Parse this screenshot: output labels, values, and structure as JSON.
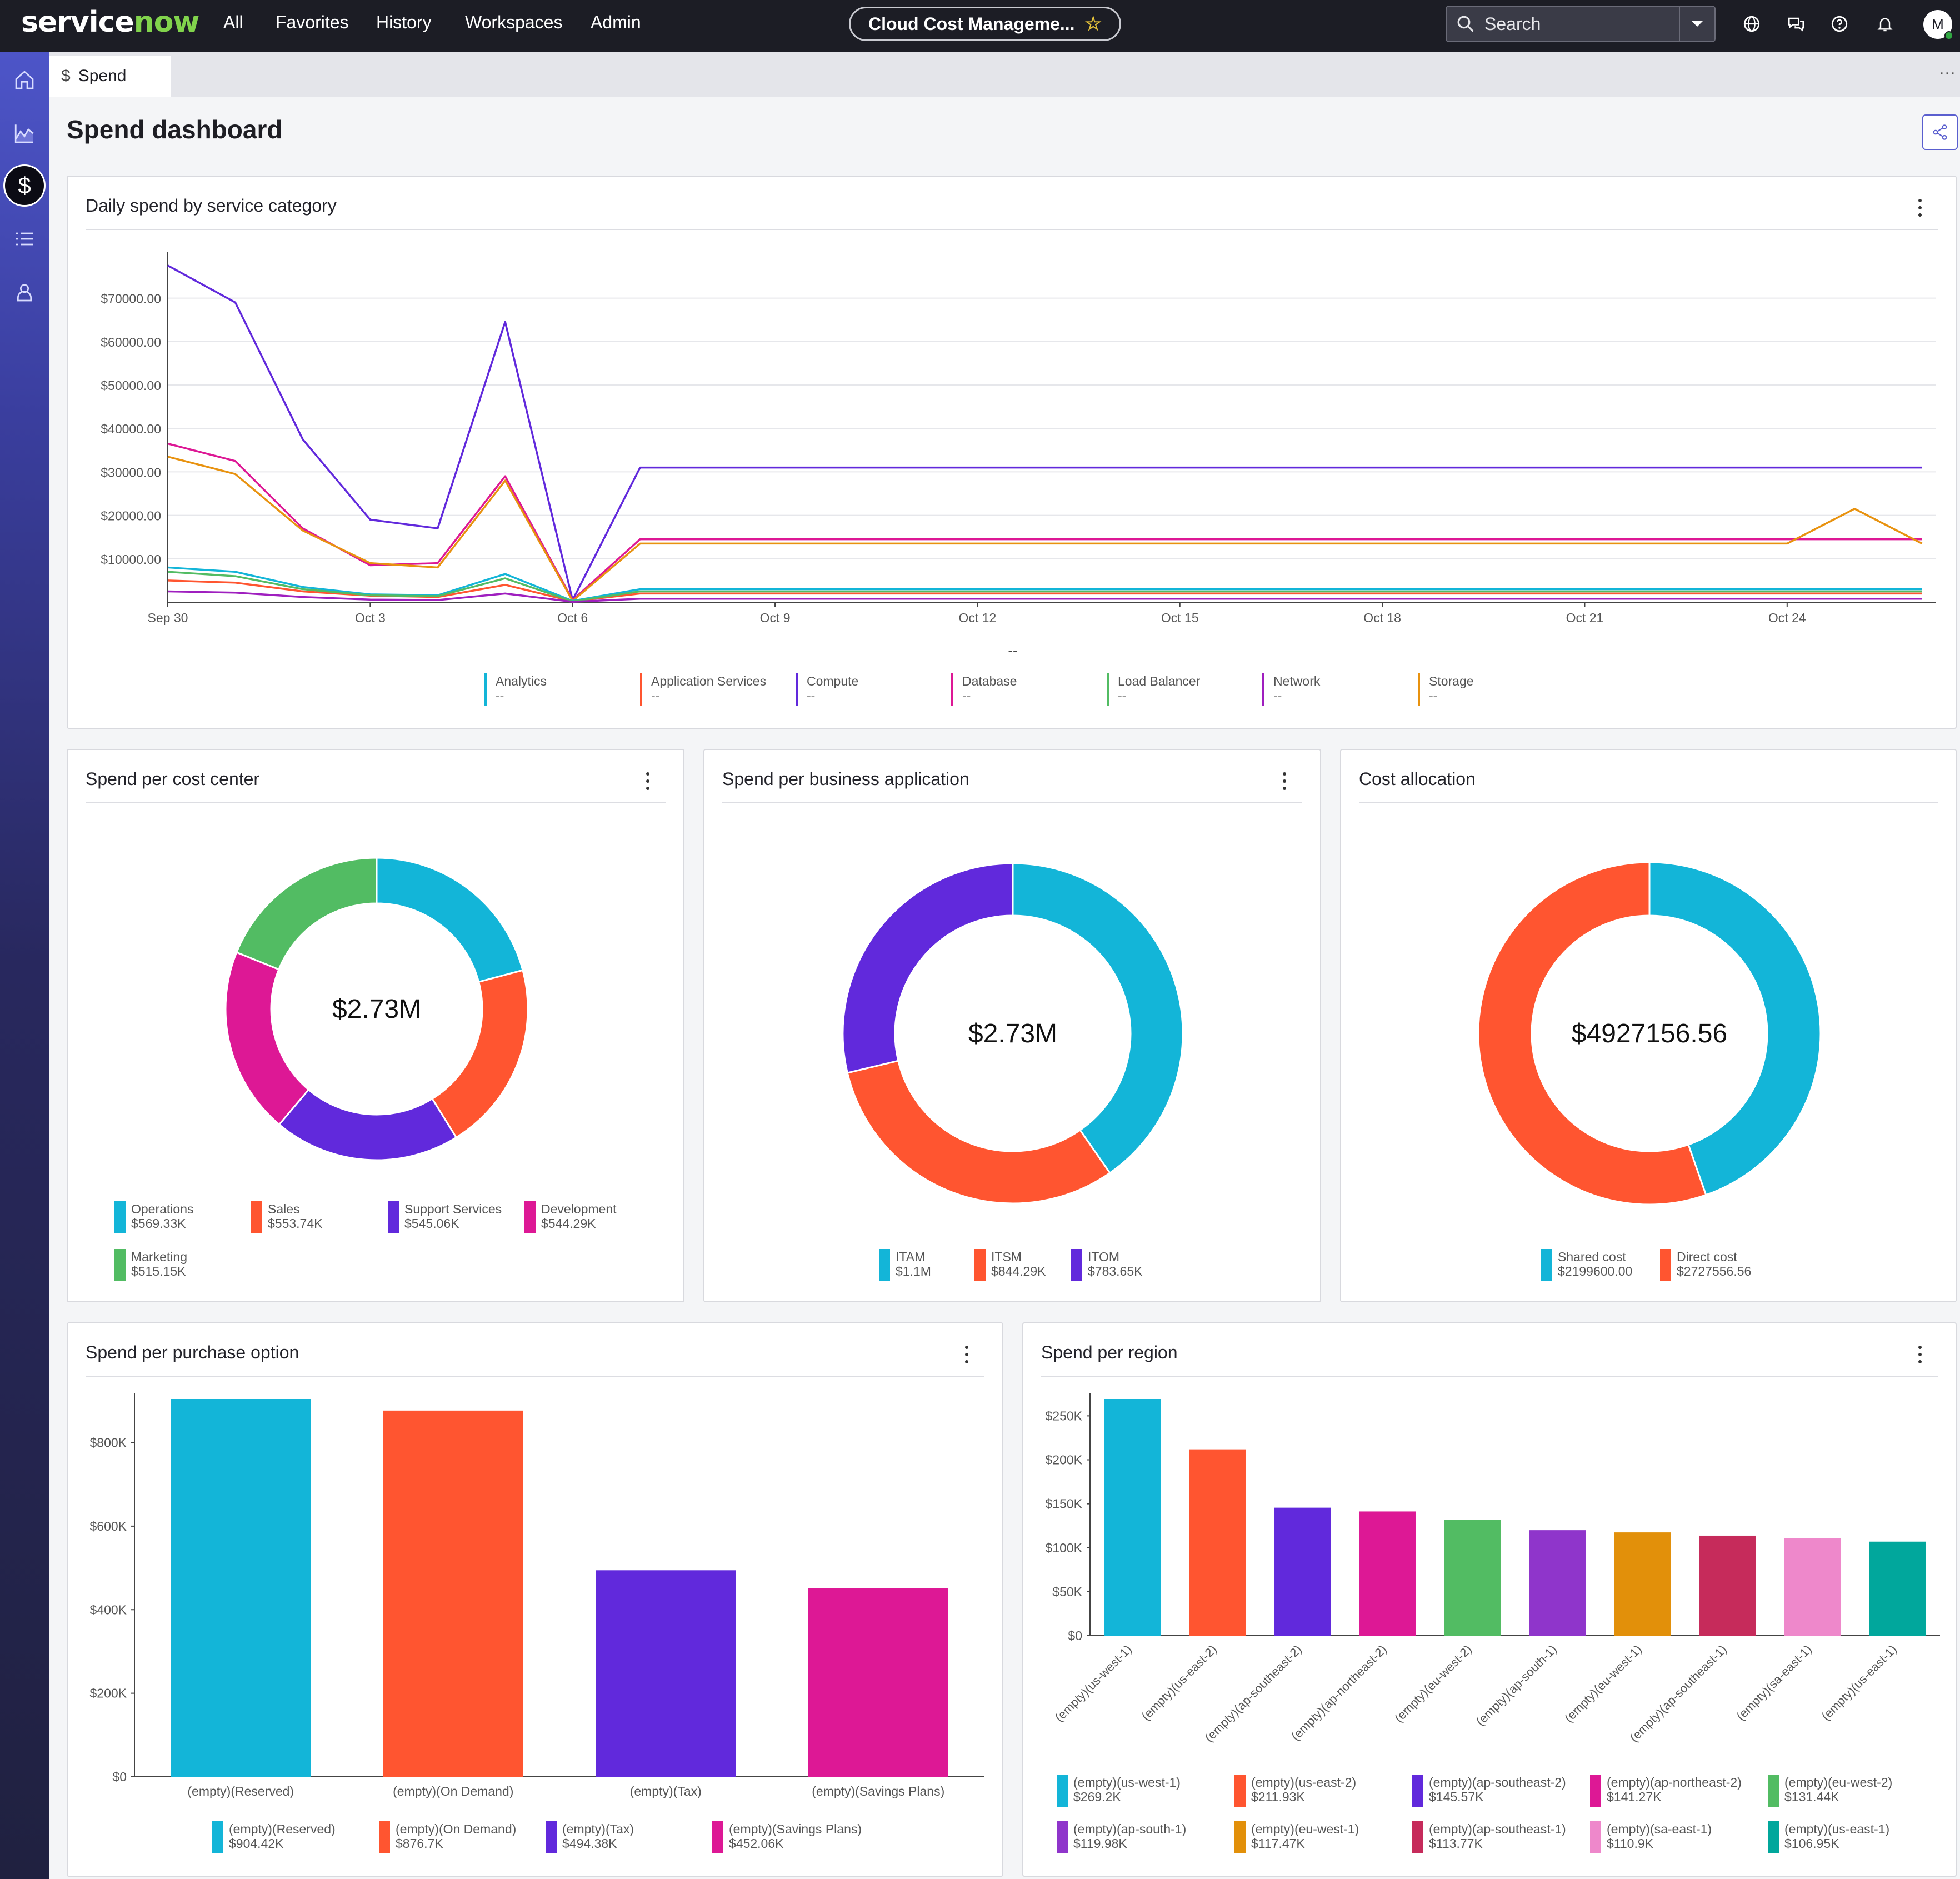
{
  "topbar": {
    "logo_text": "servicenow",
    "nav": [
      "All",
      "Favorites",
      "History",
      "Workspaces",
      "Admin"
    ],
    "app_title": "Cloud Cost Manageme...",
    "search_placeholder": "Search",
    "avatar_initial": "M"
  },
  "tab": {
    "icon": "$",
    "label": "Spend"
  },
  "page": {
    "title": "Spend dashboard"
  },
  "daily": {
    "title": "Daily spend by service category",
    "empty_mark": "--",
    "legend_value": "--"
  },
  "cost_center": {
    "title": "Spend per cost center",
    "center_label": "$2.73M"
  },
  "business_app": {
    "title": "Spend per business application",
    "center_label": "$2.73M"
  },
  "cost_allocation": {
    "title": "Cost allocation",
    "center_label": "$4927156.56"
  },
  "purchase_option": {
    "title": "Spend per purchase option"
  },
  "region": {
    "title": "Spend per region"
  },
  "colors": {
    "cyan": "#13b5d8",
    "orange": "#ff5530",
    "purple": "#6129dc",
    "magenta": "#dd1895",
    "green": "#52bc63",
    "violet": "#8f35cb",
    "amber": "#e2900a",
    "crimson": "#c62b5b",
    "pink": "#ee88cb",
    "teal": "#01a79c",
    "network": "#9f1fbf",
    "storage": "#e8920f"
  },
  "chart_data": [
    {
      "type": "line",
      "title": "Daily spend by service category",
      "x": [
        "Sep 30",
        "Oct 1",
        "Oct 2",
        "Oct 3",
        "Oct 4",
        "Oct 5",
        "Oct 6",
        "Oct 7",
        "Oct 8",
        "Oct 9",
        "Oct 10",
        "Oct 11",
        "Oct 12",
        "Oct 13",
        "Oct 14",
        "Oct 15",
        "Oct 16",
        "Oct 17",
        "Oct 18",
        "Oct 19",
        "Oct 20",
        "Oct 21",
        "Oct 22",
        "Oct 23",
        "Oct 24",
        "Oct 25",
        "Oct 26"
      ],
      "x_ticks": [
        "Sep 30",
        "Oct 3",
        "Oct 6",
        "Oct 9",
        "Oct 12",
        "Oct 15",
        "Oct 18",
        "Oct 21",
        "Oct 24"
      ],
      "y_ticks": [
        "$10000.00",
        "$20000.00",
        "$30000.00",
        "$40000.00",
        "$50000.00",
        "$60000.00",
        "$70000.00"
      ],
      "ylim": [
        0,
        78000
      ],
      "grid": true,
      "legend_position": "bottom",
      "series": [
        {
          "name": "Compute",
          "color": "#6129dc",
          "values": [
            77500,
            69000,
            37500,
            19000,
            17000,
            64500,
            500,
            31000,
            31000,
            31000,
            31000,
            31000,
            31000,
            31000,
            31000,
            31000,
            31000,
            31000,
            31000,
            31000,
            31000,
            31000,
            31000,
            31000,
            31000,
            31000,
            31000
          ]
        },
        {
          "name": "Database",
          "color": "#dd1895",
          "values": [
            36500,
            32500,
            17000,
            8500,
            9000,
            29000,
            500,
            14500,
            14500,
            14500,
            14500,
            14500,
            14500,
            14500,
            14500,
            14500,
            14500,
            14500,
            14500,
            14500,
            14500,
            14500,
            14500,
            14500,
            14500,
            14500,
            14500
          ]
        },
        {
          "name": "Storage",
          "color": "#e8920f",
          "values": [
            33500,
            29500,
            16500,
            9000,
            8000,
            28000,
            300,
            13500,
            13500,
            13500,
            13500,
            13500,
            13500,
            13500,
            13500,
            13500,
            13500,
            13500,
            13500,
            13500,
            13500,
            13500,
            13500,
            13500,
            13500,
            21500,
            13500
          ]
        },
        {
          "name": "Application Services",
          "color": "#ff5530",
          "values": [
            5000,
            4500,
            2500,
            1500,
            1200,
            4000,
            200,
            2000,
            2000,
            2000,
            2000,
            2000,
            2000,
            2000,
            2000,
            2000,
            2000,
            2000,
            2000,
            2000,
            2000,
            2000,
            2000,
            2000,
            2000,
            2000,
            2000
          ]
        },
        {
          "name": "Analytics",
          "color": "#13b5d8",
          "values": [
            8000,
            7000,
            3500,
            1800,
            1600,
            6500,
            300,
            3000,
            3000,
            3000,
            3000,
            3000,
            3000,
            3000,
            3000,
            3000,
            3000,
            3000,
            3000,
            3000,
            3000,
            3000,
            3000,
            3000,
            3000,
            3000,
            3000
          ]
        },
        {
          "name": "Load Balancer",
          "color": "#52bc63",
          "values": [
            7000,
            6000,
            3000,
            1600,
            1400,
            5500,
            200,
            2500,
            2500,
            2500,
            2500,
            2500,
            2500,
            2500,
            2500,
            2500,
            2500,
            2500,
            2500,
            2500,
            2500,
            2500,
            2500,
            2500,
            2500,
            2500,
            2500
          ]
        },
        {
          "name": "Network",
          "color": "#9f1fbf",
          "values": [
            2500,
            2200,
            1200,
            600,
            500,
            2000,
            100,
            800,
            800,
            800,
            800,
            800,
            800,
            800,
            800,
            800,
            800,
            800,
            800,
            800,
            800,
            800,
            800,
            800,
            800,
            800,
            800
          ]
        }
      ],
      "legend_order": [
        "Analytics",
        "Application Services",
        "Compute",
        "Database",
        "Load Balancer",
        "Network",
        "Storage"
      ]
    },
    {
      "type": "pie",
      "title": "Spend per cost center",
      "series": [
        {
          "name": "Operations",
          "value": 569.33,
          "label": "$569.33K",
          "color": "#13b5d8"
        },
        {
          "name": "Sales",
          "value": 553.74,
          "label": "$553.74K",
          "color": "#ff5530"
        },
        {
          "name": "Support Services",
          "value": 545.06,
          "label": "$545.06K",
          "color": "#6129dc"
        },
        {
          "name": "Development",
          "value": 544.29,
          "label": "$544.29K",
          "color": "#dd1895"
        },
        {
          "name": "Marketing",
          "value": 515.15,
          "label": "$515.15K",
          "color": "#52bc63"
        }
      ]
    },
    {
      "type": "pie",
      "title": "Spend per business application",
      "series": [
        {
          "name": "ITAM",
          "value": 1100,
          "label": "$1.1M",
          "color": "#13b5d8"
        },
        {
          "name": "ITSM",
          "value": 844.29,
          "label": "$844.29K",
          "color": "#ff5530"
        },
        {
          "name": "ITOM",
          "value": 783.65,
          "label": "$783.65K",
          "color": "#6129dc"
        }
      ]
    },
    {
      "type": "pie",
      "title": "Cost allocation",
      "series": [
        {
          "name": "Shared cost",
          "value": 2199600.0,
          "label": "$2199600.00",
          "color": "#13b5d8"
        },
        {
          "name": "Direct cost",
          "value": 2727556.56,
          "label": "$2727556.56",
          "color": "#ff5530"
        }
      ]
    },
    {
      "type": "bar",
      "title": "Spend per purchase option",
      "categories": [
        "(empty)(Reserved)",
        "(empty)(On Demand)",
        "(empty)(Tax)",
        "(empty)(Savings Plans)"
      ],
      "values": [
        904.42,
        876.7,
        494.38,
        452.06
      ],
      "labels": [
        "$904.42K",
        "$876.7K",
        "$494.38K",
        "$452.06K"
      ],
      "colors": [
        "#13b5d8",
        "#ff5530",
        "#6129dc",
        "#dd1895"
      ],
      "y_ticks": [
        "$0",
        "$200K",
        "$400K",
        "$600K",
        "$800K"
      ],
      "ylim": [
        0,
        904.42
      ]
    },
    {
      "type": "bar",
      "title": "Spend per region",
      "categories": [
        "(empty)(us-west-1)",
        "(empty)(us-east-2)",
        "(empty)(ap-southeast-2)",
        "(empty)(ap-northeast-2)",
        "(empty)(eu-west-2)",
        "(empty)(ap-south-1)",
        "(empty)(eu-west-1)",
        "(empty)(ap-southeast-1)",
        "(empty)(sa-east-1)",
        "(empty)(us-east-1)"
      ],
      "values": [
        269.2,
        211.93,
        145.57,
        141.27,
        131.44,
        119.98,
        117.47,
        113.77,
        110.9,
        106.95
      ],
      "labels": [
        "$269.2K",
        "$211.93K",
        "$145.57K",
        "$141.27K",
        "$131.44K",
        "$119.98K",
        "$117.47K",
        "$113.77K",
        "$110.9K",
        "$106.95K"
      ],
      "colors": [
        "#13b5d8",
        "#ff5530",
        "#6129dc",
        "#dd1895",
        "#52bc63",
        "#8f35cb",
        "#e2900a",
        "#c62b5b",
        "#ee88cb",
        "#01a79c"
      ],
      "y_ticks": [
        "$0",
        "$50K",
        "$100K",
        "$150K",
        "$200K",
        "$250K"
      ],
      "ylim": [
        0,
        269.2
      ]
    }
  ]
}
